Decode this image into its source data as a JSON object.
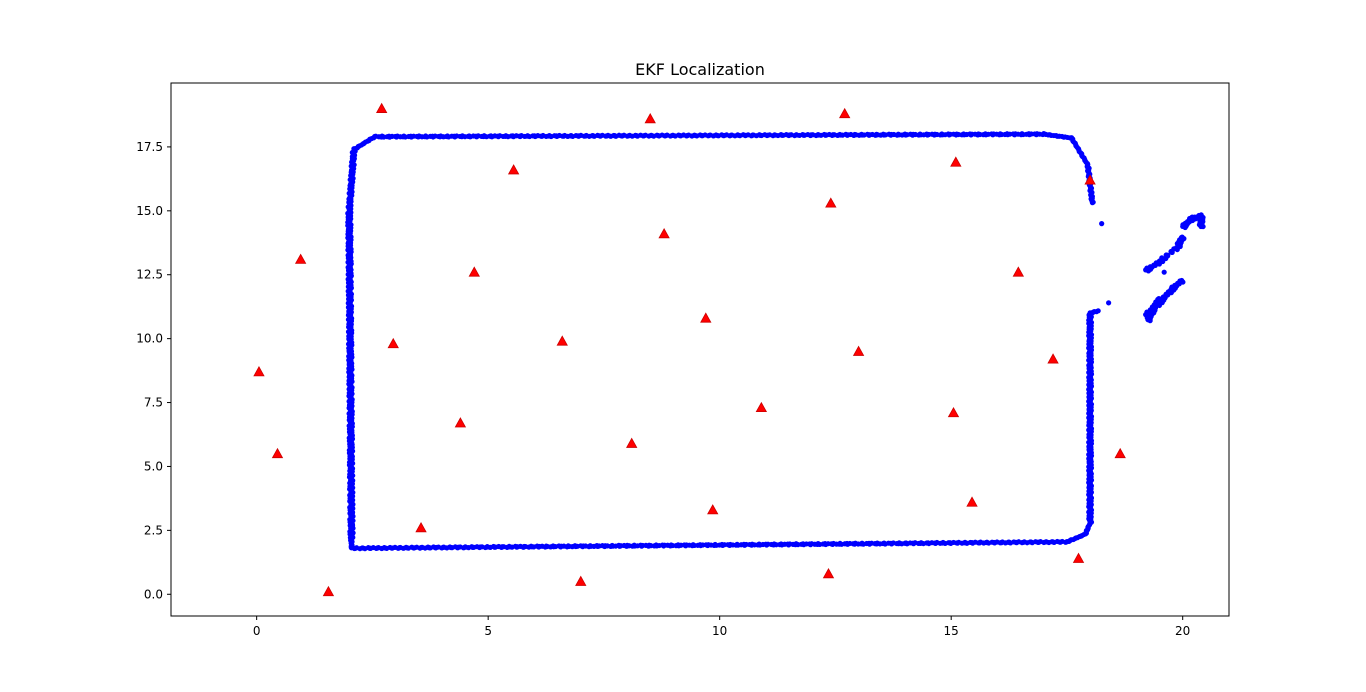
{
  "chart_data": {
    "type": "scatter",
    "title": "EKF Localization",
    "xlabel": "",
    "ylabel": "",
    "xlim": [
      -1.85,
      21.0
    ],
    "ylim": [
      -0.85,
      20.0
    ],
    "xticks": [
      0,
      5,
      10,
      15,
      20
    ],
    "yticks": [
      0.0,
      2.5,
      5.0,
      7.5,
      10.0,
      12.5,
      15.0,
      17.5
    ],
    "xtick_labels": [
      "0",
      "5",
      "10",
      "15",
      "20"
    ],
    "ytick_labels": [
      "0.0",
      "2.5",
      "5.0",
      "7.5",
      "10.0",
      "12.5",
      "15.0",
      "17.5"
    ],
    "grid": false,
    "series": [
      {
        "marker": "circle",
        "color": "#0000ff",
        "trajectory_polyline": [
          [
            2.05,
            1.8
          ],
          [
            17.5,
            2.05
          ],
          [
            17.9,
            2.35
          ],
          [
            18.0,
            2.8
          ],
          [
            18.0,
            11.0
          ],
          [
            18.2,
            11.1
          ]
        ],
        "points": [
          [
            2.05,
            1.8
          ],
          [
            17.5,
            2.05
          ],
          [
            17.9,
            2.35
          ],
          [
            18.0,
            2.8
          ],
          [
            18.0,
            11.0
          ],
          [
            18.05,
            15.3
          ],
          [
            17.95,
            16.8
          ],
          [
            17.6,
            17.85
          ],
          [
            17.0,
            18.0
          ],
          [
            2.55,
            17.9
          ],
          [
            2.1,
            17.4
          ],
          [
            2.0,
            15.0
          ],
          [
            2.05,
            2.1
          ]
        ],
        "stray_points": [
          [
            18.25,
            14.5
          ],
          [
            18.4,
            11.4
          ],
          [
            19.6,
            12.6
          ],
          [
            20.15,
            14.7
          ]
        ],
        "branches": [
          [
            [
              19.2,
              12.65
            ],
            [
              19.5,
              13.0
            ],
            [
              19.9,
              13.6
            ],
            [
              20.0,
              14.0
            ]
          ],
          [
            [
              20.0,
              14.35
            ],
            [
              20.2,
              14.7
            ],
            [
              20.4,
              14.8
            ],
            [
              20.4,
              14.35
            ]
          ],
          [
            [
              19.2,
              10.9
            ],
            [
              19.5,
              11.4
            ],
            [
              19.75,
              11.9
            ],
            [
              20.0,
              12.3
            ]
          ],
          [
            [
              19.25,
              10.7
            ],
            [
              19.35,
              11.1
            ],
            [
              19.5,
              11.6
            ]
          ]
        ]
      },
      {
        "marker": "triangle",
        "color": "#ff0000",
        "points": [
          [
            2.7,
            19.0
          ],
          [
            8.5,
            18.6
          ],
          [
            12.7,
            18.8
          ],
          [
            5.55,
            16.6
          ],
          [
            15.1,
            16.9
          ],
          [
            18.0,
            16.2
          ],
          [
            12.4,
            15.3
          ],
          [
            8.8,
            14.1
          ],
          [
            0.95,
            13.1
          ],
          [
            4.7,
            12.6
          ],
          [
            16.45,
            12.6
          ],
          [
            9.7,
            10.8
          ],
          [
            2.95,
            9.8
          ],
          [
            6.6,
            9.9
          ],
          [
            13.0,
            9.5
          ],
          [
            17.2,
            9.2
          ],
          [
            0.05,
            8.7
          ],
          [
            10.9,
            7.3
          ],
          [
            15.05,
            7.1
          ],
          [
            4.4,
            6.7
          ],
          [
            8.1,
            5.9
          ],
          [
            0.45,
            5.5
          ],
          [
            18.65,
            5.5
          ],
          [
            15.45,
            3.6
          ],
          [
            9.85,
            3.3
          ],
          [
            3.55,
            2.6
          ],
          [
            17.75,
            1.4
          ],
          [
            12.35,
            0.8
          ],
          [
            7.0,
            0.5
          ],
          [
            1.55,
            0.1
          ]
        ]
      }
    ]
  },
  "colors": {
    "trajectory": "#0000ff",
    "landmarks": "#ff0000",
    "axes": "#000000",
    "background": "#ffffff"
  }
}
